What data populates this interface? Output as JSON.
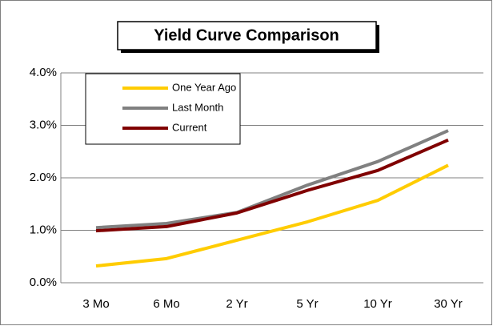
{
  "chart_data": {
    "type": "line",
    "title": "Yield Curve Comparison",
    "categories": [
      "3 Mo",
      "6 Mo",
      "2 Yr",
      "5 Yr",
      "10 Yr",
      "30 Yr"
    ],
    "series": [
      {
        "name": "One Year Ago",
        "color": "#ffcc00",
        "values": [
          0.32,
          0.46,
          0.81,
          1.16,
          1.57,
          2.24
        ]
      },
      {
        "name": "Last Month",
        "color": "#808080",
        "values": [
          1.05,
          1.13,
          1.34,
          1.86,
          2.31,
          2.9
        ]
      },
      {
        "name": "Current",
        "color": "#800000",
        "values": [
          0.99,
          1.07,
          1.33,
          1.76,
          2.14,
          2.72
        ]
      }
    ],
    "ylim": [
      0,
      4
    ],
    "yticks": [
      {
        "value": 0,
        "label": "0.0%"
      },
      {
        "value": 1,
        "label": "1.0%"
      },
      {
        "value": 2,
        "label": "2.0%"
      },
      {
        "value": 3,
        "label": "3.0%"
      },
      {
        "value": 4,
        "label": "4.0%"
      }
    ],
    "grid": true,
    "legend": "upper left"
  }
}
